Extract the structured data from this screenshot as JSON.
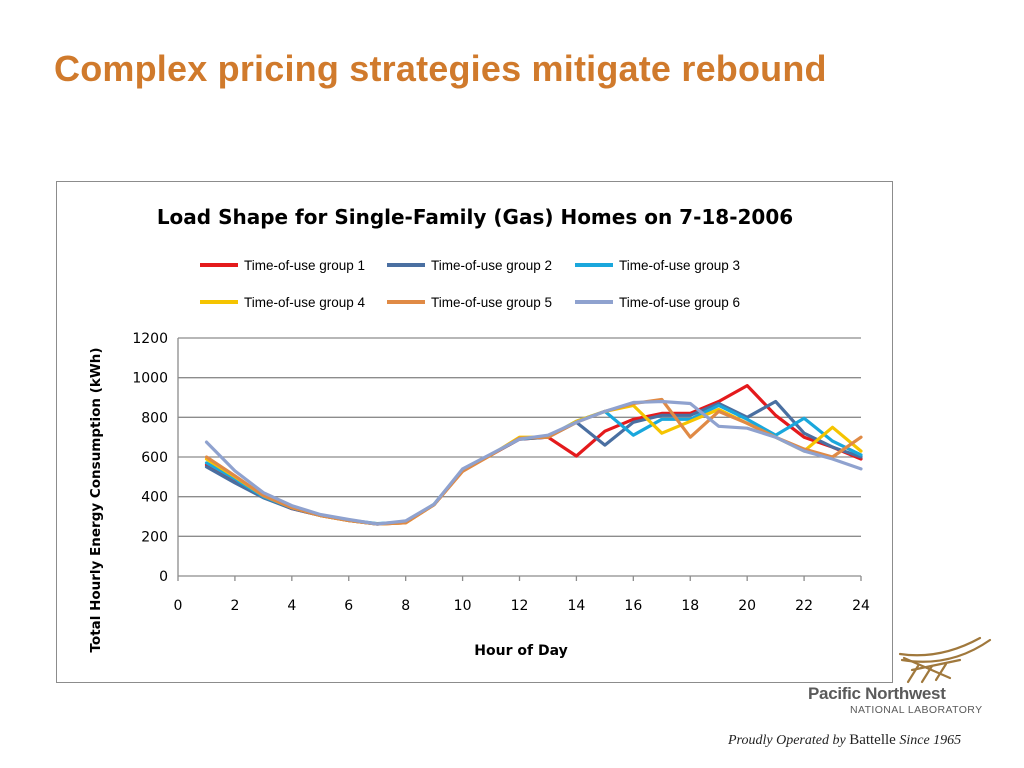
{
  "slide": {
    "title": "Complex pricing strategies mitigate rebound"
  },
  "footer": {
    "org_name": "Pacific Northwest",
    "org_sub": "NATIONAL LABORATORY",
    "operated_prefix": "Proudly Operated by ",
    "operated_brand": "Battelle",
    "operated_suffix": " Since 1965"
  },
  "chart_data": {
    "type": "line",
    "title": "Load Shape for Single-Family (Gas) Homes on 7-18-2006",
    "xlabel": "Hour of Day",
    "ylabel": "Total Hourly Energy Consumption (kWh)",
    "xlim": [
      0,
      24
    ],
    "ylim": [
      0,
      1200
    ],
    "xticks": [
      0,
      2,
      4,
      6,
      8,
      10,
      12,
      14,
      16,
      18,
      20,
      22,
      24
    ],
    "yticks": [
      0,
      200,
      400,
      600,
      800,
      1000,
      1200
    ],
    "grid": "horizontal",
    "legend_position": "top",
    "x": [
      1,
      2,
      3,
      4,
      5,
      6,
      7,
      8,
      9,
      10,
      11,
      12,
      13,
      14,
      15,
      16,
      17,
      18,
      19,
      20,
      21,
      22,
      23,
      24
    ],
    "series": [
      {
        "name": "Time-of-use group 1",
        "color": "#e41a1c",
        "values": [
          560,
          480,
          400,
          340,
          305,
          280,
          262,
          268,
          360,
          530,
          610,
          690,
          700,
          605,
          730,
          790,
          820,
          820,
          880,
          960,
          810,
          700,
          650,
          590
        ]
      },
      {
        "name": "Time-of-use group 2",
        "color": "#4a6fa1",
        "values": [
          550,
          470,
          395,
          340,
          305,
          280,
          262,
          270,
          360,
          535,
          612,
          690,
          700,
          775,
          660,
          775,
          810,
          810,
          870,
          800,
          880,
          720,
          650,
          600
        ]
      },
      {
        "name": "Time-of-use group 3",
        "color": "#1aa7dc",
        "values": [
          570,
          490,
          400,
          345,
          308,
          282,
          264,
          272,
          362,
          535,
          612,
          692,
          702,
          780,
          830,
          710,
          790,
          790,
          860,
          790,
          710,
          795,
          680,
          610
        ]
      },
      {
        "name": "Time-of-use group 4",
        "color": "#f5c400",
        "values": [
          590,
          500,
          405,
          345,
          305,
          280,
          262,
          268,
          360,
          530,
          610,
          700,
          700,
          780,
          830,
          860,
          720,
          780,
          840,
          770,
          700,
          630,
          750,
          630
        ]
      },
      {
        "name": "Time-of-use group 5",
        "color": "#e08a45",
        "values": [
          600,
          505,
          405,
          345,
          305,
          280,
          262,
          268,
          360,
          528,
          610,
          695,
          700,
          775,
          830,
          870,
          890,
          700,
          830,
          770,
          700,
          640,
          600,
          700
        ]
      },
      {
        "name": "Time-of-use group 6",
        "color": "#8fa2cf",
        "values": [
          675,
          530,
          420,
          355,
          310,
          285,
          262,
          278,
          362,
          540,
          615,
          690,
          710,
          775,
          830,
          875,
          880,
          870,
          755,
          745,
          700,
          630,
          590,
          540
        ]
      }
    ]
  }
}
